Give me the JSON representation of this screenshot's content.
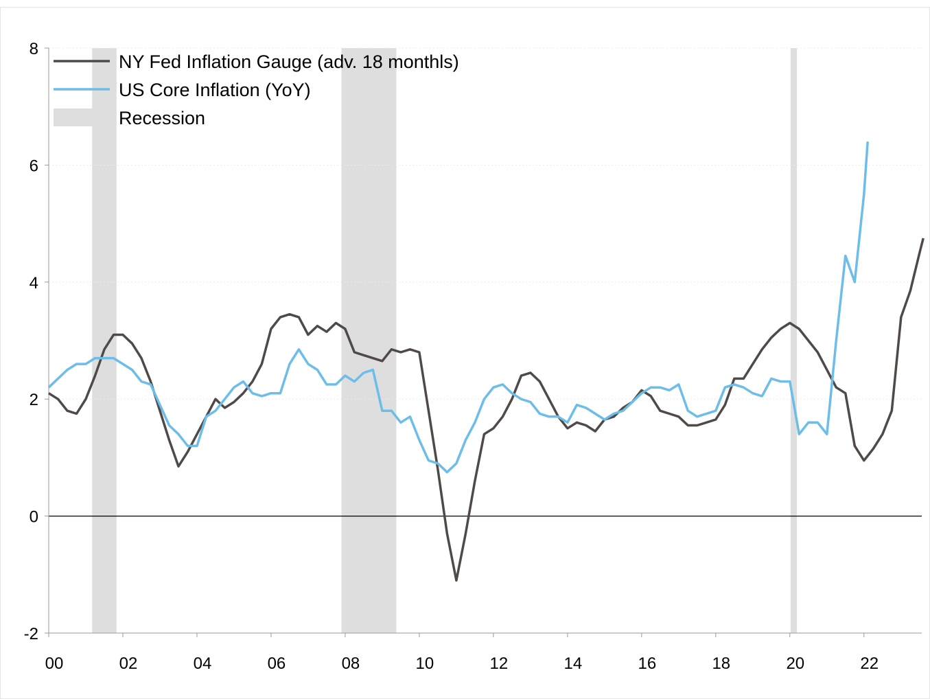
{
  "chart_data": {
    "type": "line",
    "xlim": [
      2000,
      2023.56
    ],
    "ylim": [
      -2,
      8
    ],
    "xticks": [
      {
        "value": 2000,
        "label": "00"
      },
      {
        "value": 2002,
        "label": "02"
      },
      {
        "value": 2004,
        "label": "04"
      },
      {
        "value": 2006,
        "label": "06"
      },
      {
        "value": 2008,
        "label": "08"
      },
      {
        "value": 2010,
        "label": "10"
      },
      {
        "value": 2012,
        "label": "12"
      },
      {
        "value": 2014,
        "label": "14"
      },
      {
        "value": 2016,
        "label": "16"
      },
      {
        "value": 2018,
        "label": "18"
      },
      {
        "value": 2020,
        "label": "20"
      },
      {
        "value": 2022,
        "label": "22"
      }
    ],
    "yticks": [
      -2,
      0,
      2,
      4,
      6,
      8
    ],
    "grid": true,
    "legend": "top-left",
    "recession": {
      "name": "Recession",
      "color": "#dedede",
      "ranges": [
        [
          2001.17,
          2001.83
        ],
        [
          2007.9,
          2009.38
        ],
        [
          2020.02,
          2020.19
        ]
      ]
    },
    "series": [
      {
        "name": "NY Fed Inflation Gauge (adv. 18 monthls)",
        "color": "#4f4a48",
        "x": [
          2000,
          2000.25,
          2000.5,
          2000.75,
          2001,
          2001.25,
          2001.5,
          2001.75,
          2002,
          2002.25,
          2002.5,
          2002.75,
          2003,
          2003.25,
          2003.5,
          2003.75,
          2004,
          2004.25,
          2004.5,
          2004.75,
          2005,
          2005.25,
          2005.5,
          2005.75,
          2006,
          2006.25,
          2006.5,
          2006.75,
          2007,
          2007.25,
          2007.5,
          2007.75,
          2008,
          2008.25,
          2008.5,
          2008.75,
          2009,
          2009.25,
          2009.5,
          2009.75,
          2010,
          2010.25,
          2010.5,
          2010.75,
          2011,
          2011.25,
          2011.5,
          2011.75,
          2012,
          2012.25,
          2012.5,
          2012.75,
          2013,
          2013.25,
          2013.5,
          2013.75,
          2014,
          2014.25,
          2014.5,
          2014.75,
          2015,
          2015.25,
          2015.5,
          2015.75,
          2016,
          2016.25,
          2016.5,
          2016.75,
          2017,
          2017.25,
          2017.5,
          2017.75,
          2018,
          2018.25,
          2018.5,
          2018.75,
          2019,
          2019.25,
          2019.5,
          2019.75,
          2020,
          2020.25,
          2020.5,
          2020.75,
          2021,
          2021.25,
          2021.5,
          2021.75,
          2022,
          2022.25,
          2022.5,
          2022.75,
          2023,
          2023.25,
          2023.5,
          2023.6
        ],
        "values": [
          2.1,
          2.0,
          1.8,
          1.75,
          2.0,
          2.4,
          2.85,
          3.1,
          3.1,
          2.95,
          2.7,
          2.3,
          1.8,
          1.3,
          0.85,
          1.1,
          1.4,
          1.7,
          2.0,
          1.85,
          1.95,
          2.1,
          2.3,
          2.6,
          3.2,
          3.4,
          3.45,
          3.4,
          3.1,
          3.25,
          3.15,
          3.3,
          3.2,
          2.8,
          2.75,
          2.7,
          2.65,
          2.85,
          2.8,
          2.85,
          2.8,
          1.8,
          0.8,
          -0.3,
          -1.1,
          -0.3,
          0.6,
          1.4,
          1.5,
          1.7,
          2.0,
          2.4,
          2.45,
          2.3,
          2.0,
          1.7,
          1.5,
          1.6,
          1.55,
          1.45,
          1.65,
          1.7,
          1.85,
          1.95,
          2.15,
          2.05,
          1.8,
          1.75,
          1.7,
          1.55,
          1.55,
          1.6,
          1.65,
          1.9,
          2.35,
          2.35,
          2.6,
          2.85,
          3.05,
          3.2,
          3.3,
          3.2,
          3.0,
          2.8,
          2.5,
          2.2,
          2.1,
          1.2,
          0.95,
          1.15,
          1.4,
          1.8,
          3.4,
          3.85,
          4.5,
          4.75
        ]
      },
      {
        "name": "US Core Inflation (YoY)",
        "color": "#6dbde9",
        "x": [
          2000,
          2000.25,
          2000.5,
          2000.75,
          2001,
          2001.25,
          2001.5,
          2001.75,
          2002,
          2002.25,
          2002.5,
          2002.75,
          2003,
          2003.25,
          2003.5,
          2003.75,
          2004,
          2004.25,
          2004.5,
          2004.75,
          2005,
          2005.25,
          2005.5,
          2005.75,
          2006,
          2006.25,
          2006.5,
          2006.75,
          2007,
          2007.25,
          2007.5,
          2007.75,
          2008,
          2008.25,
          2008.5,
          2008.75,
          2009,
          2009.25,
          2009.5,
          2009.75,
          2010,
          2010.25,
          2010.5,
          2010.75,
          2011,
          2011.25,
          2011.5,
          2011.75,
          2012,
          2012.25,
          2012.5,
          2012.75,
          2013,
          2013.25,
          2013.5,
          2013.75,
          2014,
          2014.25,
          2014.5,
          2014.75,
          2015,
          2015.25,
          2015.5,
          2015.75,
          2016,
          2016.25,
          2016.5,
          2016.75,
          2017,
          2017.25,
          2017.5,
          2017.75,
          2018,
          2018.25,
          2018.5,
          2018.75,
          2019,
          2019.25,
          2019.5,
          2019.75,
          2020,
          2020.25,
          2020.5,
          2020.75,
          2021,
          2021.25,
          2021.5,
          2021.75,
          2022,
          2022.1
        ],
        "values": [
          2.2,
          2.35,
          2.5,
          2.6,
          2.6,
          2.7,
          2.7,
          2.7,
          2.6,
          2.5,
          2.3,
          2.25,
          1.9,
          1.55,
          1.4,
          1.2,
          1.2,
          1.7,
          1.8,
          2.0,
          2.2,
          2.3,
          2.1,
          2.05,
          2.1,
          2.1,
          2.6,
          2.85,
          2.6,
          2.5,
          2.25,
          2.25,
          2.4,
          2.3,
          2.45,
          2.5,
          1.8,
          1.8,
          1.6,
          1.7,
          1.3,
          0.95,
          0.9,
          0.75,
          0.9,
          1.3,
          1.6,
          2.0,
          2.2,
          2.25,
          2.1,
          2.0,
          1.95,
          1.75,
          1.7,
          1.7,
          1.6,
          1.9,
          1.85,
          1.75,
          1.65,
          1.75,
          1.8,
          1.95,
          2.1,
          2.2,
          2.2,
          2.15,
          2.25,
          1.8,
          1.7,
          1.75,
          1.8,
          2.2,
          2.25,
          2.2,
          2.1,
          2.05,
          2.35,
          2.3,
          2.3,
          1.4,
          1.6,
          1.6,
          1.4,
          3.0,
          4.45,
          4.0,
          5.5,
          6.4
        ]
      }
    ]
  }
}
